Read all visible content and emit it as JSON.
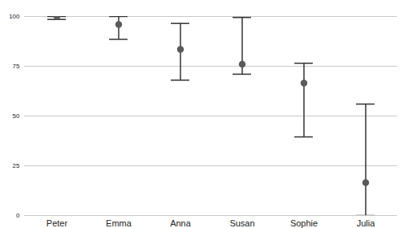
{
  "chart_data": {
    "type": "errorbar",
    "categories": [
      "Peter",
      "Emma",
      "Anna",
      "Susan",
      "Sophie",
      "Julia"
    ],
    "values": [
      100,
      96,
      83.5,
      76,
      66.5,
      16.5
    ],
    "lower": [
      98.5,
      88.5,
      68,
      71,
      39.5,
      0
    ],
    "upper": [
      100,
      100,
      96.5,
      99.5,
      76.5,
      56
    ],
    "color": "#5a5a5a",
    "ylim": [
      0,
      100
    ],
    "yticks": [
      0,
      25,
      50,
      75,
      100
    ],
    "grid": true
  }
}
